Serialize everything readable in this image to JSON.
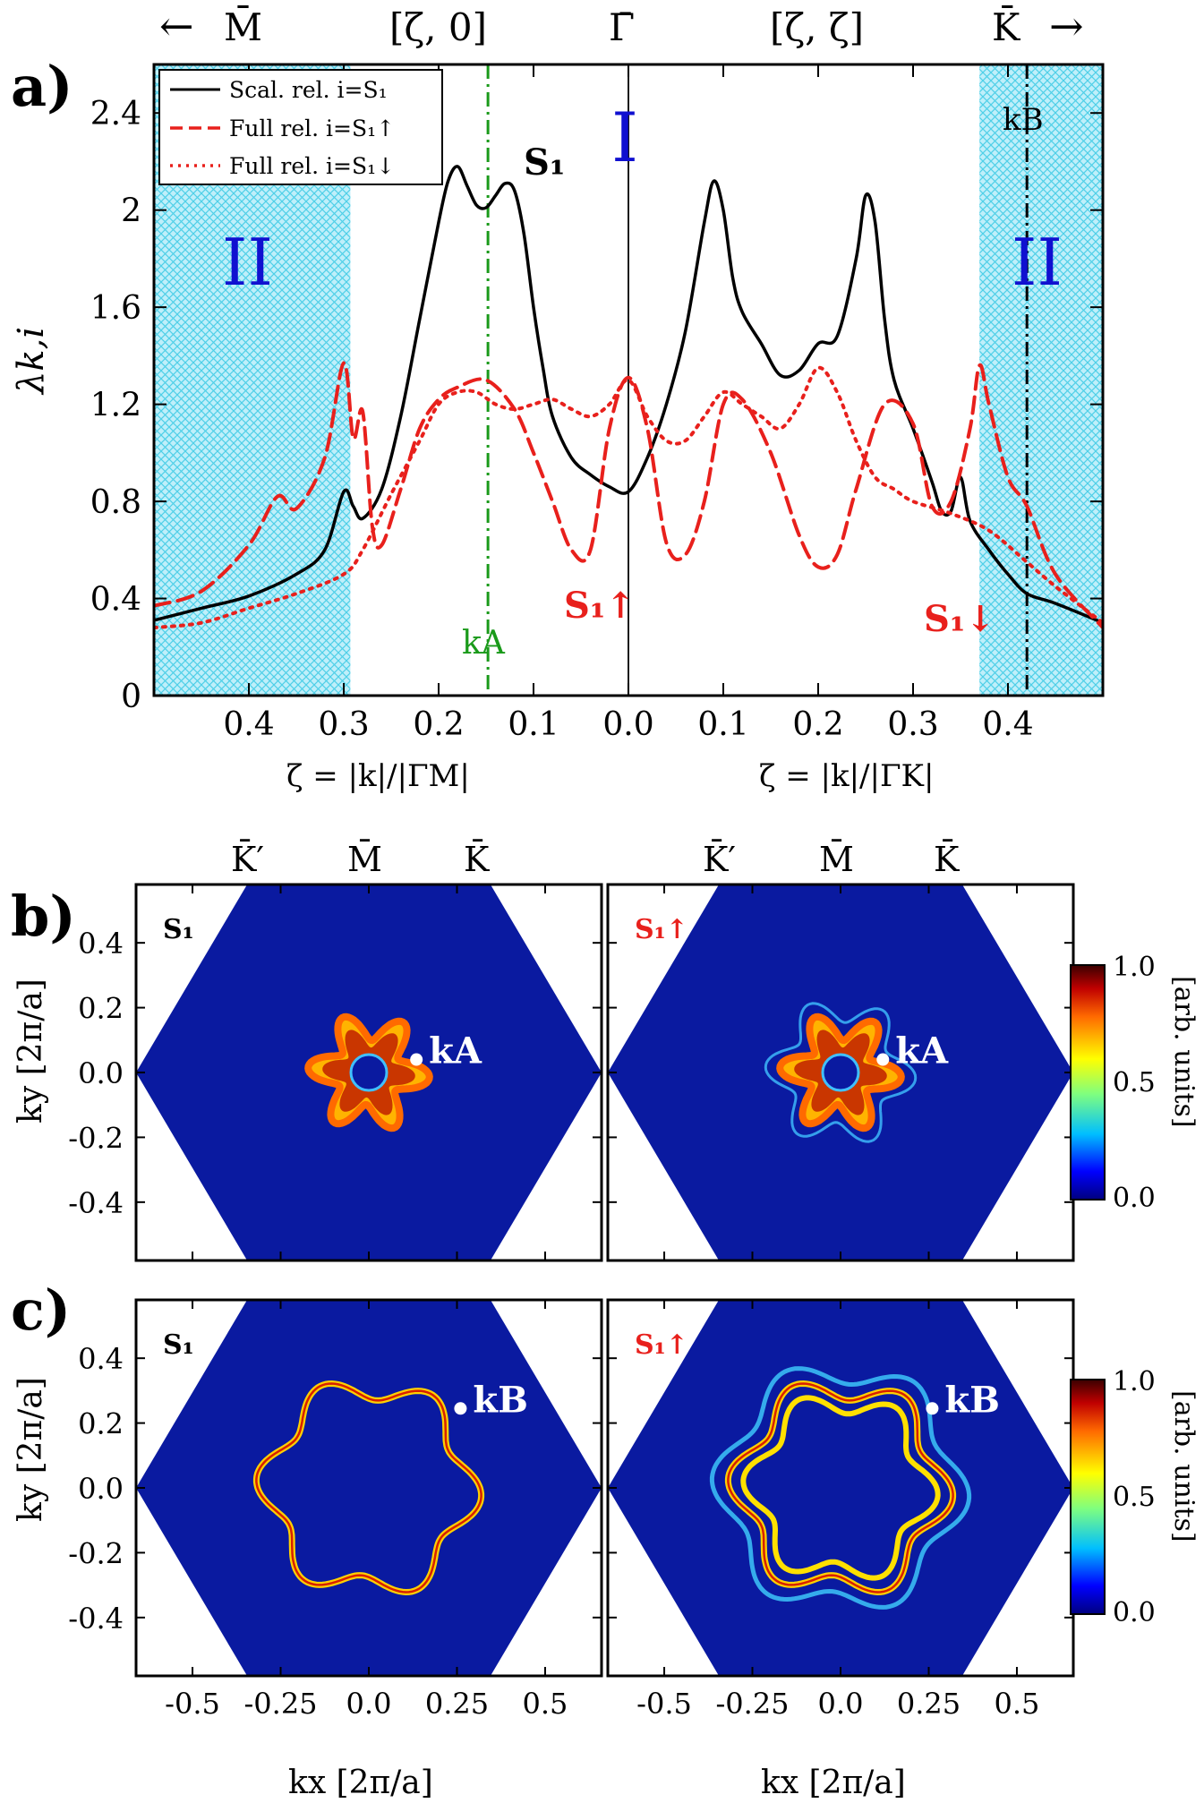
{
  "panel_labels": {
    "a": "a)",
    "b": "b)",
    "c": "c)"
  },
  "colors": {
    "black": "#000000",
    "red": "#e8201c",
    "green": "#1a9a1a",
    "blue": "#1010d0",
    "cyan": "#7fd8f0",
    "bz_blue": "#0a1aa0"
  },
  "chart_data": [
    {
      "id": "a",
      "type": "line",
      "top_labels": {
        "left_arrow": "←",
        "M": "M̄",
        "zeta0": "[ζ, 0]",
        "Gamma": "Γ̄",
        "zetazeta": "[ζ, ζ]",
        "K": "K̄",
        "right_arrow": "→"
      },
      "ylabel": "λk,i",
      "xlabel_left": "ζ = |k|/|ΓM|",
      "xlabel_right": "ζ = |k|/|ΓK|",
      "xlim": [
        -0.5,
        0.5
      ],
      "ylim": [
        0,
        2.6
      ],
      "yticks": [
        "0",
        "0.4",
        "0.8",
        "1.2",
        "1.6",
        "2",
        "2.4"
      ],
      "ytick_values": [
        0,
        0.4,
        0.8,
        1.2,
        1.6,
        2.0,
        2.4
      ],
      "xticks": [
        "0.4",
        "0.3",
        "0.2",
        "0.1",
        "0.0",
        "0.1",
        "0.2",
        "0.3",
        "0.4"
      ],
      "xtick_values": [
        -0.4,
        -0.3,
        -0.2,
        -0.1,
        0.0,
        0.1,
        0.2,
        0.3,
        0.4
      ],
      "regions": [
        {
          "label": "II",
          "from": -0.5,
          "to": -0.293
        },
        {
          "label": "II",
          "from": 0.37,
          "to": 0.5
        },
        {
          "label": "I",
          "at": 0.0
        }
      ],
      "vlines": [
        {
          "x": -0.148,
          "label": "kA",
          "style": "dash-dot",
          "color": "green"
        },
        {
          "x": 0.0,
          "label": "",
          "style": "solid",
          "color": "black"
        },
        {
          "x": 0.42,
          "label": "kB",
          "style": "dash-dot",
          "color": "black"
        }
      ],
      "legend": {
        "position": "top-left",
        "entries": [
          {
            "text": "Scal. rel. i=S₁",
            "style": "solid",
            "color": "black"
          },
          {
            "text": "Full rel. i=S₁↑",
            "style": "dashed",
            "color": "red"
          },
          {
            "text": "Full rel. i=S₁↓",
            "style": "dotted",
            "color": "red"
          }
        ]
      },
      "annotations": [
        {
          "text": "S₁",
          "x": -0.07,
          "y": 2.13,
          "color": "black"
        },
        {
          "text": "S₁↑",
          "x": -0.04,
          "y": 0.42,
          "color": "red"
        },
        {
          "text": "S₁↓",
          "x": 0.34,
          "y": 0.32,
          "color": "red"
        }
      ],
      "series": [
        {
          "name": "Scal. rel. i=S₁",
          "style": "solid",
          "color": "black",
          "x": [
            -0.5,
            -0.45,
            -0.4,
            -0.35,
            -0.32,
            -0.3,
            -0.29,
            -0.28,
            -0.26,
            -0.24,
            -0.22,
            -0.2,
            -0.19,
            -0.18,
            -0.17,
            -0.16,
            -0.15,
            -0.14,
            -0.13,
            -0.12,
            -0.11,
            -0.1,
            -0.09,
            -0.08,
            -0.06,
            -0.04,
            -0.02,
            0.0,
            0.02,
            0.04,
            0.06,
            0.08,
            0.09,
            0.1,
            0.11,
            0.12,
            0.14,
            0.16,
            0.18,
            0.2,
            0.22,
            0.24,
            0.25,
            0.26,
            0.27,
            0.28,
            0.3,
            0.32,
            0.33,
            0.34,
            0.35,
            0.36,
            0.38,
            0.4,
            0.42,
            0.45,
            0.5
          ],
          "y": [
            0.31,
            0.36,
            0.41,
            0.5,
            0.6,
            0.84,
            0.78,
            0.73,
            0.85,
            1.15,
            1.55,
            1.95,
            2.12,
            2.18,
            2.1,
            2.02,
            2.01,
            2.06,
            2.11,
            2.08,
            1.9,
            1.6,
            1.35,
            1.15,
            0.98,
            0.91,
            0.86,
            0.84,
            0.98,
            1.2,
            1.5,
            1.95,
            2.12,
            2.0,
            1.72,
            1.58,
            1.45,
            1.32,
            1.34,
            1.45,
            1.48,
            1.8,
            2.06,
            1.95,
            1.55,
            1.3,
            1.1,
            0.88,
            0.76,
            0.76,
            0.9,
            0.72,
            0.6,
            0.5,
            0.42,
            0.38,
            0.3
          ]
        },
        {
          "name": "Full rel. i=S₁↑",
          "style": "dashed",
          "color": "red",
          "x": [
            -0.5,
            -0.45,
            -0.4,
            -0.37,
            -0.35,
            -0.32,
            -0.3,
            -0.29,
            -0.28,
            -0.27,
            -0.26,
            -0.24,
            -0.22,
            -0.2,
            -0.18,
            -0.15,
            -0.12,
            -0.1,
            -0.08,
            -0.06,
            -0.04,
            -0.02,
            0.0,
            0.02,
            0.04,
            0.06,
            0.08,
            0.1,
            0.12,
            0.15,
            0.18,
            0.2,
            0.22,
            0.24,
            0.27,
            0.3,
            0.32,
            0.34,
            0.36,
            0.37,
            0.38,
            0.4,
            0.42,
            0.45,
            0.5
          ],
          "y": [
            0.37,
            0.43,
            0.62,
            0.82,
            0.77,
            0.98,
            1.37,
            1.06,
            1.17,
            0.7,
            0.62,
            0.85,
            1.1,
            1.22,
            1.27,
            1.3,
            1.18,
            1.0,
            0.8,
            0.6,
            0.6,
            1.1,
            1.31,
            1.1,
            0.63,
            0.58,
            0.8,
            1.2,
            1.22,
            1.0,
            0.66,
            0.53,
            0.58,
            0.85,
            1.2,
            1.12,
            0.78,
            0.8,
            1.1,
            1.36,
            1.2,
            0.9,
            0.78,
            0.5,
            0.28
          ]
        },
        {
          "name": "Full rel. i=S₁↓",
          "style": "dotted",
          "color": "red",
          "x": [
            -0.5,
            -0.45,
            -0.4,
            -0.35,
            -0.3,
            -0.28,
            -0.25,
            -0.22,
            -0.2,
            -0.18,
            -0.16,
            -0.14,
            -0.12,
            -0.1,
            -0.08,
            -0.06,
            -0.04,
            -0.02,
            0.0,
            0.02,
            0.04,
            0.06,
            0.08,
            0.1,
            0.12,
            0.14,
            0.16,
            0.18,
            0.2,
            0.22,
            0.24,
            0.26,
            0.28,
            0.3,
            0.34,
            0.38,
            0.42,
            0.45,
            0.5
          ],
          "y": [
            0.28,
            0.3,
            0.36,
            0.42,
            0.5,
            0.6,
            0.83,
            1.05,
            1.2,
            1.25,
            1.25,
            1.2,
            1.18,
            1.2,
            1.22,
            1.18,
            1.15,
            1.2,
            1.3,
            1.15,
            1.05,
            1.05,
            1.15,
            1.25,
            1.2,
            1.15,
            1.1,
            1.2,
            1.35,
            1.25,
            1.05,
            0.9,
            0.85,
            0.8,
            0.75,
            0.68,
            0.55,
            0.45,
            0.3
          ]
        }
      ]
    },
    {
      "id": "b",
      "type": "heatmap",
      "bz_labels": [
        "K̄′",
        "M̄",
        "K̄"
      ],
      "ylabel": "ky [2π/a]",
      "yticks": [
        "0.4",
        "0.2",
        "0.0",
        "-0.2",
        "-0.4"
      ],
      "ytick_values": [
        0.4,
        0.2,
        0.0,
        -0.2,
        -0.4
      ],
      "ylim": [
        -0.58,
        0.58
      ],
      "xlim": [
        -0.66,
        0.66
      ],
      "left": {
        "label": "S₁",
        "marker": {
          "label": "kA",
          "x": 0.135,
          "y": 0.04
        }
      },
      "right": {
        "label": "S₁↑",
        "marker": {
          "label": "kA",
          "x": 0.12,
          "y": 0.04
        }
      },
      "colorbar": {
        "label": "[arb. units]",
        "ticks": [
          "1.0",
          "0.5",
          "0.0"
        ]
      }
    },
    {
      "id": "c",
      "type": "heatmap",
      "ylabel": "ky [2π/a]",
      "xlabel": "kx [2π/a]",
      "yticks": [
        "0.4",
        "0.2",
        "0.0",
        "-0.2",
        "-0.4"
      ],
      "ytick_values": [
        0.4,
        0.2,
        0.0,
        -0.2,
        -0.4
      ],
      "xticks": [
        "-0.5",
        "-0.25",
        "0.0",
        "0.25",
        "0.5"
      ],
      "xtick_values": [
        -0.5,
        -0.25,
        0.0,
        0.25,
        0.5
      ],
      "ylim": [
        -0.58,
        0.58
      ],
      "xlim": [
        -0.66,
        0.66
      ],
      "left": {
        "label": "S₁",
        "marker": {
          "label": "kB",
          "x": 0.26,
          "y": 0.245
        }
      },
      "right": {
        "label": "S₁↑",
        "marker": {
          "label": "kB",
          "x": 0.26,
          "y": 0.245
        }
      },
      "colorbar": {
        "label": "[arb. units]",
        "ticks": [
          "1.0",
          "0.5",
          "0.0"
        ]
      }
    }
  ]
}
